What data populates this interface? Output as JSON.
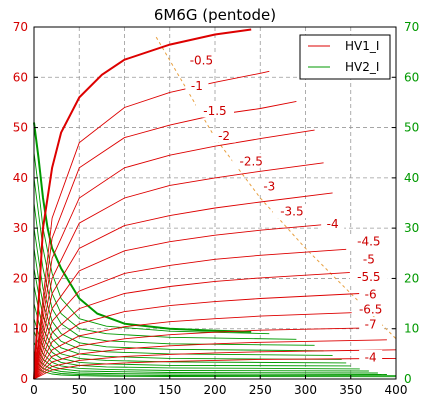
{
  "chart_data": {
    "type": "line",
    "title": "6M6G (pentode)",
    "xlim": [
      0,
      400
    ],
    "ylim_left": [
      0,
      70
    ],
    "ylim_right": [
      0,
      70
    ],
    "x_ticks": [
      "0",
      "50",
      "100",
      "150",
      "200",
      "250",
      "300",
      "350",
      "400"
    ],
    "y_ticks_left": [
      "0",
      "10",
      "20",
      "30",
      "40",
      "50",
      "60",
      "70"
    ],
    "y_ticks_right": [
      "0",
      "10",
      "20",
      "30",
      "40",
      "50",
      "60",
      "70"
    ],
    "grid": true,
    "legend_position": "top-right",
    "legend": [
      {
        "name": "HV1_I",
        "color": "#dd0000"
      },
      {
        "name": "HV2_I",
        "color": "#009900"
      }
    ],
    "colors": {
      "anode": "#dd0000",
      "screen": "#009900",
      "load_line": "#e8a040",
      "left_axis": "#d40000",
      "right_axis": "#009900"
    },
    "grid_voltage_labels": [
      "-0.5",
      "-1",
      "-1.5",
      "-2",
      "-2.5",
      "-3",
      "-3.5",
      "-4",
      "-4.5",
      "-5",
      "-5.5",
      "-6",
      "-6.5",
      "-7",
      "-4"
    ],
    "anode_curves": [
      {
        "bias": "0",
        "bold": true,
        "points": [
          [
            0,
            0
          ],
          [
            10,
            30
          ],
          [
            20,
            42
          ],
          [
            30,
            49
          ],
          [
            50,
            56
          ],
          [
            75,
            60.5
          ],
          [
            100,
            63.5
          ],
          [
            150,
            66.5
          ],
          [
            200,
            68.5
          ],
          [
            240,
            69.5
          ]
        ]
      },
      {
        "bias": "-0.5",
        "points": [
          [
            0,
            0
          ],
          [
            20,
            32
          ],
          [
            50,
            47
          ],
          [
            100,
            54
          ],
          [
            150,
            57
          ],
          [
            200,
            59
          ],
          [
            250,
            60.8
          ],
          [
            260,
            61.2
          ]
        ]
      },
      {
        "bias": "-1",
        "points": [
          [
            0,
            0
          ],
          [
            20,
            28
          ],
          [
            50,
            42
          ],
          [
            100,
            48
          ],
          [
            150,
            50.5
          ],
          [
            200,
            52.5
          ],
          [
            250,
            53.8
          ],
          [
            290,
            55.2
          ]
        ]
      },
      {
        "bias": "-1.5",
        "points": [
          [
            0,
            0
          ],
          [
            20,
            24
          ],
          [
            50,
            36
          ],
          [
            100,
            42
          ],
          [
            150,
            44.5
          ],
          [
            200,
            46.3
          ],
          [
            250,
            47.8
          ],
          [
            310,
            49.5
          ]
        ]
      },
      {
        "bias": "-2",
        "points": [
          [
            0,
            0
          ],
          [
            20,
            20
          ],
          [
            50,
            31
          ],
          [
            100,
            36
          ],
          [
            150,
            38.5
          ],
          [
            200,
            40
          ],
          [
            250,
            41.3
          ],
          [
            320,
            43
          ]
        ]
      },
      {
        "bias": "-2.5",
        "points": [
          [
            0,
            0
          ],
          [
            20,
            17
          ],
          [
            50,
            26
          ],
          [
            100,
            30.5
          ],
          [
            150,
            32.5
          ],
          [
            200,
            34
          ],
          [
            250,
            35.2
          ],
          [
            330,
            37
          ]
        ]
      },
      {
        "bias": "-3",
        "points": [
          [
            0,
            0
          ],
          [
            20,
            14
          ],
          [
            50,
            21.5
          ],
          [
            100,
            25.5
          ],
          [
            150,
            27.3
          ],
          [
            200,
            28.6
          ],
          [
            250,
            29.6
          ],
          [
            340,
            31
          ]
        ]
      },
      {
        "bias": "-3.5",
        "points": [
          [
            0,
            0
          ],
          [
            20,
            11.5
          ],
          [
            50,
            17.5
          ],
          [
            100,
            21
          ],
          [
            150,
            22.6
          ],
          [
            200,
            23.8
          ],
          [
            250,
            24.6
          ],
          [
            345,
            25.8
          ]
        ]
      },
      {
        "bias": "-4",
        "points": [
          [
            0,
            0
          ],
          [
            20,
            9.2
          ],
          [
            50,
            14
          ],
          [
            100,
            17
          ],
          [
            150,
            18.4
          ],
          [
            200,
            19.4
          ],
          [
            250,
            20.1
          ],
          [
            350,
            21.2
          ]
        ]
      },
      {
        "bias": "-4.5",
        "points": [
          [
            0,
            0
          ],
          [
            20,
            7.4
          ],
          [
            50,
            11
          ],
          [
            100,
            13.4
          ],
          [
            150,
            14.6
          ],
          [
            200,
            15.4
          ],
          [
            250,
            16
          ],
          [
            360,
            17
          ]
        ]
      },
      {
        "bias": "-5",
        "points": [
          [
            0,
            0
          ],
          [
            20,
            5.8
          ],
          [
            50,
            8.6
          ],
          [
            100,
            10.4
          ],
          [
            150,
            11.4
          ],
          [
            200,
            12
          ],
          [
            250,
            12.5
          ],
          [
            370,
            13.3
          ]
        ]
      },
      {
        "bias": "-5.5",
        "points": [
          [
            0,
            0
          ],
          [
            20,
            4.5
          ],
          [
            50,
            6.6
          ],
          [
            100,
            8
          ],
          [
            150,
            8.8
          ],
          [
            200,
            9.3
          ],
          [
            250,
            9.7
          ],
          [
            380,
            10.2
          ]
        ]
      },
      {
        "bias": "-6",
        "points": [
          [
            0,
            0
          ],
          [
            20,
            3.4
          ],
          [
            50,
            5
          ],
          [
            100,
            6
          ],
          [
            150,
            6.6
          ],
          [
            200,
            7
          ],
          [
            250,
            7.3
          ],
          [
            390,
            7.8
          ]
        ]
      },
      {
        "bias": "-6.5",
        "points": [
          [
            0,
            0
          ],
          [
            20,
            2.5
          ],
          [
            50,
            3.7
          ],
          [
            100,
            4.5
          ],
          [
            150,
            4.9
          ],
          [
            200,
            5.2
          ],
          [
            250,
            5.4
          ],
          [
            400,
            5.8
          ]
        ]
      },
      {
        "bias": "-7",
        "points": [
          [
            0,
            0
          ],
          [
            20,
            1.8
          ],
          [
            50,
            2.7
          ],
          [
            100,
            3.2
          ],
          [
            150,
            3.5
          ],
          [
            200,
            3.7
          ],
          [
            250,
            3.9
          ],
          [
            400,
            4.1
          ]
        ]
      }
    ],
    "screen_curves": [
      {
        "bias": "0",
        "bold": true,
        "points": [
          [
            0,
            51
          ],
          [
            5,
            44
          ],
          [
            10,
            36
          ],
          [
            15,
            30
          ],
          [
            20,
            26
          ],
          [
            30,
            22
          ],
          [
            40,
            19
          ],
          [
            50,
            16
          ],
          [
            70,
            13
          ],
          [
            100,
            11
          ],
          [
            150,
            10
          ],
          [
            200,
            9.6
          ],
          [
            240,
            9.4
          ]
        ]
      },
      {
        "bias": "-0.5",
        "points": [
          [
            0,
            45
          ],
          [
            5,
            38
          ],
          [
            10,
            30
          ],
          [
            20,
            21
          ],
          [
            30,
            16
          ],
          [
            50,
            12
          ],
          [
            80,
            10.5
          ],
          [
            150,
            9.5
          ],
          [
            260,
            9
          ]
        ]
      },
      {
        "bias": "-1",
        "points": [
          [
            0,
            40
          ],
          [
            5,
            33
          ],
          [
            10,
            26
          ],
          [
            20,
            17
          ],
          [
            30,
            13
          ],
          [
            50,
            10
          ],
          [
            80,
            9
          ],
          [
            150,
            8.3
          ],
          [
            290,
            7.9
          ]
        ]
      },
      {
        "bias": "-1.5",
        "points": [
          [
            0,
            35
          ],
          [
            5,
            28
          ],
          [
            10,
            22
          ],
          [
            20,
            14
          ],
          [
            30,
            11
          ],
          [
            50,
            8.5
          ],
          [
            80,
            7.6
          ],
          [
            150,
            7
          ],
          [
            310,
            6.7
          ]
        ]
      },
      {
        "bias": "-2",
        "points": [
          [
            0,
            30
          ],
          [
            5,
            24
          ],
          [
            10,
            18
          ],
          [
            20,
            11.5
          ],
          [
            30,
            9
          ],
          [
            50,
            7.2
          ],
          [
            80,
            6.4
          ],
          [
            150,
            5.9
          ],
          [
            320,
            5.6
          ]
        ]
      },
      {
        "bias": "-2.5",
        "points": [
          [
            0,
            26
          ],
          [
            5,
            20
          ],
          [
            10,
            15
          ],
          [
            20,
            9.5
          ],
          [
            30,
            7.5
          ],
          [
            50,
            6
          ],
          [
            80,
            5.4
          ],
          [
            150,
            5
          ],
          [
            330,
            4.7
          ]
        ]
      },
      {
        "bias": "-3",
        "points": [
          [
            0,
            22
          ],
          [
            5,
            17
          ],
          [
            10,
            12.5
          ],
          [
            20,
            8
          ],
          [
            30,
            6.2
          ],
          [
            50,
            5
          ],
          [
            80,
            4.5
          ],
          [
            150,
            4.1
          ],
          [
            340,
            3.9
          ]
        ]
      },
      {
        "bias": "-3.5",
        "points": [
          [
            0,
            18.5
          ],
          [
            5,
            14
          ],
          [
            10,
            10
          ],
          [
            20,
            6.5
          ],
          [
            30,
            5
          ],
          [
            50,
            4.1
          ],
          [
            80,
            3.7
          ],
          [
            150,
            3.4
          ],
          [
            345,
            3.2
          ]
        ]
      },
      {
        "bias": "-4",
        "points": [
          [
            0,
            15
          ],
          [
            5,
            11.5
          ],
          [
            10,
            8.2
          ],
          [
            20,
            5.3
          ],
          [
            30,
            4.1
          ],
          [
            50,
            3.3
          ],
          [
            80,
            3
          ],
          [
            150,
            2.7
          ],
          [
            350,
            2.6
          ]
        ]
      },
      {
        "bias": "-4.5",
        "points": [
          [
            0,
            12
          ],
          [
            5,
            9
          ],
          [
            10,
            6.5
          ],
          [
            20,
            4.2
          ],
          [
            30,
            3.3
          ],
          [
            50,
            2.7
          ],
          [
            80,
            2.4
          ],
          [
            150,
            2.2
          ],
          [
            360,
            2
          ]
        ]
      },
      {
        "bias": "-5",
        "points": [
          [
            0,
            9.5
          ],
          [
            5,
            7
          ],
          [
            10,
            5
          ],
          [
            20,
            3.3
          ],
          [
            30,
            2.6
          ],
          [
            50,
            2.1
          ],
          [
            80,
            1.9
          ],
          [
            150,
            1.7
          ],
          [
            370,
            1.6
          ]
        ]
      },
      {
        "bias": "-5.5",
        "points": [
          [
            0,
            7.3
          ],
          [
            5,
            5.4
          ],
          [
            10,
            3.9
          ],
          [
            20,
            2.5
          ],
          [
            30,
            2
          ],
          [
            50,
            1.6
          ],
          [
            80,
            1.5
          ],
          [
            150,
            1.3
          ],
          [
            380,
            1.2
          ]
        ]
      },
      {
        "bias": "-6",
        "points": [
          [
            0,
            5.5
          ],
          [
            5,
            4
          ],
          [
            10,
            2.9
          ],
          [
            20,
            1.9
          ],
          [
            30,
            1.5
          ],
          [
            50,
            1.2
          ],
          [
            80,
            1.1
          ],
          [
            150,
            1
          ],
          [
            390,
            0.9
          ]
        ]
      },
      {
        "bias": "-6.5",
        "points": [
          [
            0,
            4
          ],
          [
            5,
            2.9
          ],
          [
            10,
            2.1
          ],
          [
            20,
            1.4
          ],
          [
            30,
            1.1
          ],
          [
            50,
            0.9
          ],
          [
            80,
            0.8
          ],
          [
            150,
            0.7
          ],
          [
            400,
            0.65
          ]
        ]
      },
      {
        "bias": "-7",
        "points": [
          [
            0,
            2.8
          ],
          [
            5,
            2
          ],
          [
            10,
            1.5
          ],
          [
            20,
            1
          ],
          [
            30,
            0.8
          ],
          [
            50,
            0.65
          ],
          [
            80,
            0.55
          ],
          [
            150,
            0.5
          ],
          [
            400,
            0.45
          ]
        ]
      }
    ],
    "load_line": {
      "points": [
        [
          135,
          68
        ],
        [
          200,
          48
        ],
        [
          250,
          36
        ],
        [
          300,
          26
        ],
        [
          350,
          17
        ],
        [
          400,
          8
        ]
      ]
    }
  }
}
